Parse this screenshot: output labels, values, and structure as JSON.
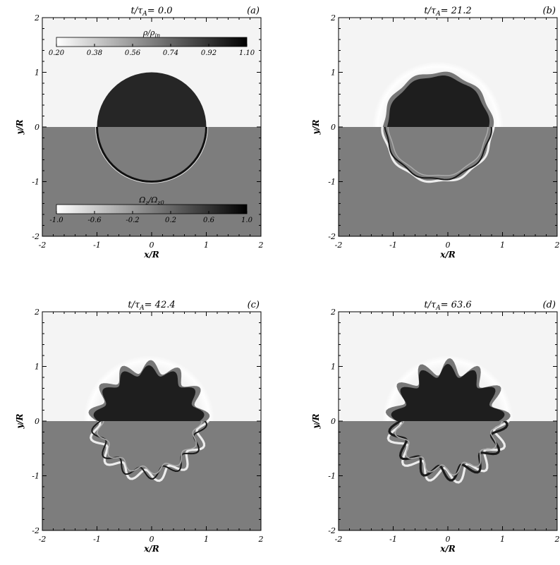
{
  "figure": {
    "panels": [
      {
        "title": "t/τ_A=   0.0",
        "tag": "(a)",
        "stage": 0
      },
      {
        "title": "t/τ_A=  21.2",
        "tag": "(b)",
        "stage": 1
      },
      {
        "title": "t/τ_A=  42.4",
        "tag": "(c)",
        "stage": 2
      },
      {
        "title": "t/τ_A=  63.6",
        "tag": "(d)",
        "stage": 3
      }
    ],
    "xlabel": "x/R",
    "ylabel": "y/R",
    "x_ticks": [
      "-2",
      "-1",
      "0",
      "1",
      "2"
    ],
    "y_ticks": [
      "-2",
      "-1",
      "0",
      "1",
      "2"
    ],
    "xlim": [
      -2,
      2
    ],
    "ylim": [
      -2,
      2
    ],
    "colorbar_density": {
      "label": "ρ/ρ_in",
      "ticks": [
        "0.20",
        "0.38",
        "0.56",
        "0.74",
        "0.92",
        "1.10"
      ]
    },
    "colorbar_vorticity": {
      "label": "Ω_z/Ω_z0",
      "ticks": [
        "-1.0",
        "-0.6",
        "-0.2",
        "0.2",
        "0.6",
        "1.0"
      ]
    }
  }
}
